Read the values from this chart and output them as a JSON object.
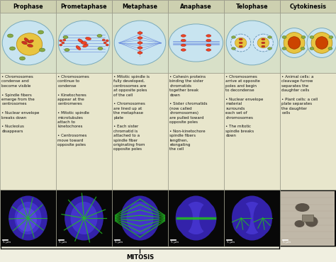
{
  "phases": [
    "Prophase",
    "Prometaphase",
    "Metaphase",
    "Anaphase",
    "Telophase",
    "Cytokinesis"
  ],
  "header_bg": "#cdd0b0",
  "illus_bg": "#d8e0c8",
  "text_bg": "#e8e6cc",
  "micro_bg": "#080808",
  "border_color": "#999988",
  "title_color": "#000000",
  "body_text_color": "#111111",
  "mitosis_label": "MITOSIS",
  "bullet_texts": [
    "• Chromosomes\ncondense and\nbecome visible\n\n• Spindle fibers\nemerge from the\ncentrosomes\n\n• Nuclear envelope\nbreaks down\n\n• Nucleolus\ndisappears",
    "• Chromosomes\ncontinue to\ncondense\n\n• Kinetochores\nappear at the\ncentromeres\n\n• Mitotic spindle\nmicrotubules\nattach to\nkinetochores\n\n• Centrosomes\nmove toward\nopposite poles",
    "• Mitotic spindle is\nfully developed,\ncentrosomes are\nat opposite poles\nof the cell\n\n• Chromosomes\nare lined up at\nthe metaphase\nplate\n\n• Each sister\nchromatid is\nattached to a\nspindle fiber\noriginating from\nopposite poles",
    "• Cohesin proteins\nbinding the sister\nchromatids\ntogether break\ndown\n\n• Sister chromatids\n(now called\nchromosomes)\nare pulled toward\nopposite poles\n\n• Non-kinetochore\nspindle fibers\nlengthen,\nelongating\nthe cell",
    "• Chromosomes\narrive at opposite\npoles and begin\nto decondense\n\n• Nuclear envelope\nmaterial\nsurrounds\neach set of\nchromosomes\n\n• The mitotic\nspindle breaks\ndown",
    "• Animal cells: a\ncleavage furrow\nseparates the\ndaughter cells\n\n• Plant cells: a cell\nplate separates\nthe daughter\ncells"
  ],
  "scale_bar_text": "5 μm",
  "fig_bg": "#f0efe0",
  "header_font_size": 5.8,
  "body_font_size": 4.0,
  "mitosis_font_size": 6.0
}
